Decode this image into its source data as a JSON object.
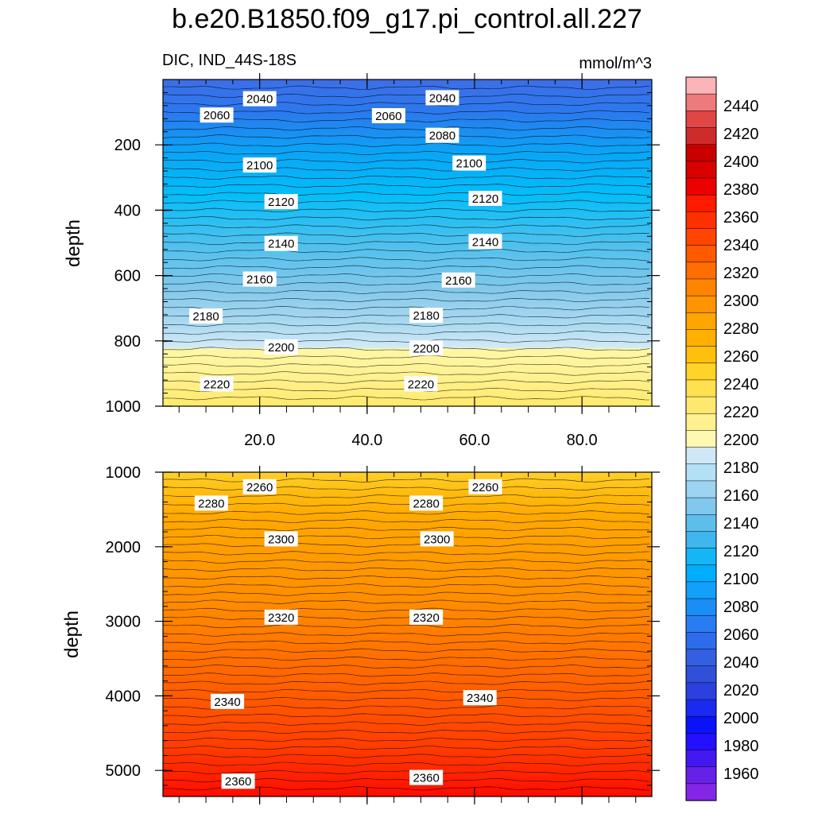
{
  "chart_data": {
    "type": "heatmap",
    "title": "b.e20.B1850.f09_g17.pi_control.all.227",
    "variable_label": "DIC, IND_44S-18S",
    "units": "mmol/m^3",
    "ylabel": "depth",
    "x_ticks": [
      "20.0",
      "40.0",
      "60.0",
      "80.0"
    ],
    "x_tick_values": [
      20,
      40,
      60,
      80
    ],
    "xlim": [
      2,
      93
    ],
    "upper_panel": {
      "ylim": [
        0,
        1000
      ],
      "y_ticks": [
        "200",
        "400",
        "600",
        "800",
        "1000"
      ],
      "y_tick_values": [
        200,
        400,
        600,
        800,
        1000
      ],
      "contour_labels": [
        {
          "text": "2040",
          "x": 20,
          "depth": 60
        },
        {
          "text": "2040",
          "x": 54,
          "depth": 57
        },
        {
          "text": "2060",
          "x": 12,
          "depth": 110
        },
        {
          "text": "2060",
          "x": 44,
          "depth": 112
        },
        {
          "text": "2080",
          "x": 54,
          "depth": 172
        },
        {
          "text": "2100",
          "x": 20,
          "depth": 263
        },
        {
          "text": "2100",
          "x": 59,
          "depth": 257
        },
        {
          "text": "2120",
          "x": 24,
          "depth": 375
        },
        {
          "text": "2120",
          "x": 62,
          "depth": 365
        },
        {
          "text": "2140",
          "x": 24,
          "depth": 503
        },
        {
          "text": "2140",
          "x": 62,
          "depth": 497
        },
        {
          "text": "2160",
          "x": 20,
          "depth": 612
        },
        {
          "text": "2160",
          "x": 57,
          "depth": 615
        },
        {
          "text": "2180",
          "x": 10,
          "depth": 725
        },
        {
          "text": "2180",
          "x": 51,
          "depth": 723
        },
        {
          "text": "2200",
          "x": 24,
          "depth": 820
        },
        {
          "text": "2200",
          "x": 51,
          "depth": 823
        },
        {
          "text": "2220",
          "x": 12,
          "depth": 933
        },
        {
          "text": "2220",
          "x": 50,
          "depth": 933
        }
      ]
    },
    "lower_panel": {
      "ylim": [
        1000,
        5350
      ],
      "y_ticks": [
        "1000",
        "2000",
        "3000",
        "4000",
        "5000"
      ],
      "y_tick_values": [
        1000,
        2000,
        3000,
        4000,
        5000
      ],
      "contour_labels": [
        {
          "text": "2260",
          "x": 20,
          "depth": 1200
        },
        {
          "text": "2260",
          "x": 62,
          "depth": 1200
        },
        {
          "text": "2280",
          "x": 11,
          "depth": 1420
        },
        {
          "text": "2280",
          "x": 51,
          "depth": 1420
        },
        {
          "text": "2300",
          "x": 24,
          "depth": 1900
        },
        {
          "text": "2300",
          "x": 53,
          "depth": 1900
        },
        {
          "text": "2320",
          "x": 24,
          "depth": 2950
        },
        {
          "text": "2320",
          "x": 51,
          "depth": 2950
        },
        {
          "text": "2340",
          "x": 14,
          "depth": 4080
        },
        {
          "text": "2340",
          "x": 61,
          "depth": 4030
        },
        {
          "text": "2360",
          "x": 16,
          "depth": 5150
        },
        {
          "text": "2360",
          "x": 51,
          "depth": 5100
        }
      ]
    },
    "colorbar": {
      "tick_labels": [
        "2440",
        "2420",
        "2400",
        "2380",
        "2360",
        "2340",
        "2320",
        "2300",
        "2280",
        "2260",
        "2240",
        "2220",
        "2200",
        "2180",
        "2160",
        "2140",
        "2120",
        "2100",
        "2080",
        "2060",
        "2040",
        "2020",
        "2000",
        "1980",
        "1960"
      ],
      "colors": [
        "#fbb4b8",
        "#ee7a7c",
        "#e04646",
        "#d02b2b",
        "#c80000",
        "#d90000",
        "#ec0000",
        "#ff1a00",
        "#ff3000",
        "#ff4500",
        "#ff5a00",
        "#ff6e00",
        "#ff8500",
        "#ff9400",
        "#ffa500",
        "#ffb000",
        "#ffc00c",
        "#ffd428",
        "#ffe050",
        "#ffe870",
        "#fff090",
        "#fff8b2",
        "#cfe8f8",
        "#b4e0f6",
        "#9cd4f2",
        "#80c8ee",
        "#5ebeeb",
        "#3fb6ed",
        "#13b7f5",
        "#00aefc",
        "#12a0fa",
        "#1a8ef7",
        "#2a7cf2",
        "#2d6deb",
        "#3360e0",
        "#3050d8",
        "#2c40e0",
        "#1a2af0",
        "#0a12fa",
        "#2210ff",
        "#4418f0",
        "#6620e8",
        "#8426e6"
      ]
    }
  }
}
